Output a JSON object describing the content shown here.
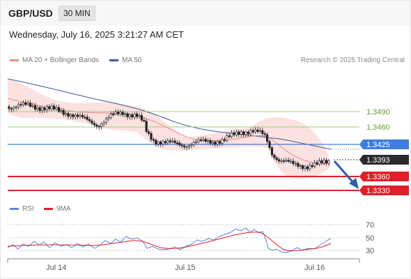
{
  "header": {
    "symbol": "GBP/USD",
    "timeframe": "30 MIN",
    "datetime": "Wednesday, July 16, 2025 3:21:27 AM CET"
  },
  "legend": {
    "ma20_label": "MA 20 + Bollinger Bands",
    "ma50_label": "MA 50",
    "credit": "Research © 2025 Trading Central",
    "rsi_label": "RSI",
    "rsi_ma_label": "9MA"
  },
  "colors": {
    "up_candle": "#f5f5f5",
    "down_candle": "#222222",
    "ma20": "#f08a8a",
    "ma50": "#3a5a98",
    "bollinger_fill": "#fbdcdc",
    "level_green": "#9bd07a",
    "pivot_blue": "#3f7de0",
    "support_red": "#e0202a",
    "current_price_bg": "#2b2b2b",
    "rsi_line": "#5a86d8",
    "rsi_ma_line": "#e0202a",
    "arrow": "#2f5da8"
  },
  "price_levels": [
    {
      "label": "1.3490",
      "type": "resistance"
    },
    {
      "label": "1.3460",
      "type": "resistance"
    },
    {
      "label": "1.3425",
      "type": "pivot"
    },
    {
      "label": "1.3393",
      "type": "current"
    },
    {
      "label": "1.3360",
      "type": "target"
    },
    {
      "label": "1.3330",
      "type": "target"
    }
  ],
  "rsi_axis": [
    "70",
    "50",
    "30"
  ],
  "x_axis": [
    "Jul 14",
    "Jul 15",
    "Jul 16"
  ],
  "chart_data": {
    "type": "candlestick",
    "series": [
      {
        "name": "MA 20 + Bollinger Bands"
      },
      {
        "name": "MA 50"
      },
      {
        "name": "RSI"
      },
      {
        "name": "9MA"
      }
    ],
    "price_levels": [
      1.349,
      1.346,
      1.3425,
      1.3393,
      1.336,
      1.333
    ],
    "rsi_levels": [
      70,
      50,
      30
    ],
    "x_labels": [
      "Jul 14",
      "Jul 15",
      "Jul 16"
    ],
    "forecast": "down",
    "current_price": 1.3393
  }
}
